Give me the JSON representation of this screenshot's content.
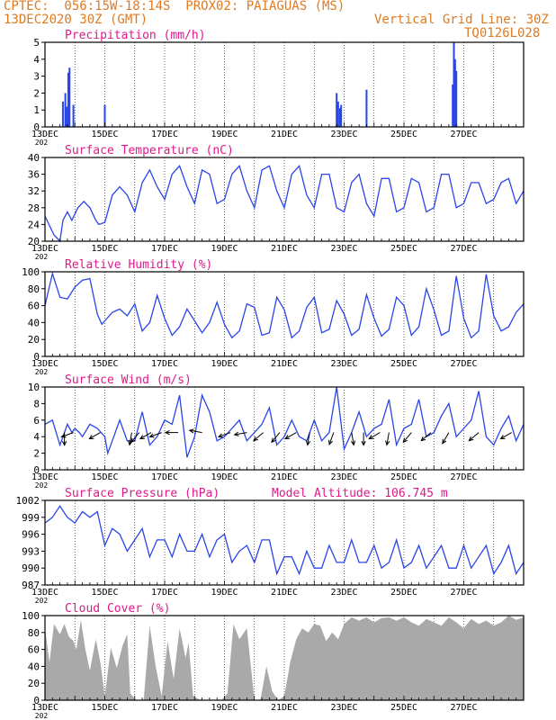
{
  "header": {
    "line1": "CPTEC:  056:15W-18:14S  PROX02: PAIAGUAS (MS)",
    "line2": "13DEC2020 30Z (GMT)",
    "grid_note": "Vertical Grid Line: 30Z",
    "code": "TQ0126L028"
  },
  "colors": {
    "line": "#2a45e8",
    "title": "#e0198a",
    "header": "#e07a20",
    "cloud": "#a9a9a9",
    "grid": "#000000"
  },
  "x_ticks": [
    "13DEC",
    "15DEC",
    "17DEC",
    "19DEC",
    "21DEC",
    "23DEC",
    "25DEC",
    "27DEC"
  ],
  "x_sub": "202",
  "chart_data": [
    {
      "type": "bar",
      "title": "Precipitation (mm/h)",
      "ylim": [
        0,
        5
      ],
      "yticks": [
        0,
        1,
        2,
        3,
        4,
        5
      ],
      "x_range_days": [
        0,
        16
      ],
      "bars": [
        [
          0.6,
          1.5
        ],
        [
          0.68,
          2.0
        ],
        [
          0.72,
          1.2
        ],
        [
          0.78,
          3.2
        ],
        [
          0.82,
          3.5
        ],
        [
          0.95,
          1.3
        ],
        [
          2.0,
          1.3
        ],
        [
          9.75,
          2.0
        ],
        [
          9.8,
          1.5
        ],
        [
          9.86,
          1.1
        ],
        [
          9.9,
          1.3
        ],
        [
          10.75,
          2.2
        ],
        [
          13.63,
          2.5
        ],
        [
          13.67,
          5.0
        ],
        [
          13.71,
          4.0
        ],
        [
          13.75,
          3.3
        ]
      ]
    },
    {
      "type": "line",
      "title": "Surface Temperature (nC)",
      "ylim": [
        20,
        40
      ],
      "yticks": [
        20,
        24,
        28,
        32,
        36,
        40
      ],
      "x_range_days": [
        0,
        16
      ],
      "x": [
        0,
        0.3,
        0.5,
        0.6,
        0.75,
        0.9,
        1.1,
        1.3,
        1.5,
        1.7,
        1.8,
        2.0,
        2.1,
        2.25,
        2.5,
        2.75,
        3.0,
        3.25,
        3.5,
        3.75,
        4.0,
        4.25,
        4.5,
        4.75,
        5.0,
        5.25,
        5.5,
        5.75,
        6.0,
        6.25,
        6.5,
        6.75,
        7.0,
        7.25,
        7.5,
        7.75,
        8.0,
        8.25,
        8.5,
        8.75,
        9.0,
        9.25,
        9.5,
        9.75,
        10.0,
        10.25,
        10.5,
        10.75,
        11.0,
        11.25,
        11.5,
        11.75,
        12.0,
        12.25,
        12.5,
        12.75,
        13.0,
        13.25,
        13.5,
        13.75,
        14.0,
        14.25,
        14.5,
        14.75,
        15.0,
        15.25,
        15.5,
        15.75,
        16.0
      ],
      "y": [
        26,
        21.5,
        20,
        25,
        27,
        25,
        28,
        29.5,
        28,
        25,
        24,
        24.5,
        27,
        31,
        33,
        31,
        27,
        34,
        37,
        33,
        30,
        36,
        38,
        33,
        29,
        37,
        36,
        29,
        30,
        36,
        38,
        32,
        28,
        37,
        38,
        32,
        28,
        36,
        38,
        31,
        28,
        36,
        36,
        28,
        27,
        34,
        36,
        29,
        26,
        35,
        35,
        27,
        28,
        35,
        34,
        27,
        28,
        36,
        36,
        28,
        29,
        34,
        34,
        29,
        30,
        34,
        35,
        29,
        32
      ]
    },
    {
      "type": "line",
      "title": "Relative Humidity (%)",
      "ylim": [
        0,
        100
      ],
      "yticks": [
        0,
        20,
        40,
        60,
        80,
        100
      ],
      "x_range_days": [
        0,
        16
      ],
      "x": [
        0,
        0.25,
        0.5,
        0.75,
        1.0,
        1.25,
        1.5,
        1.75,
        1.9,
        2.0,
        2.25,
        2.5,
        2.75,
        3.0,
        3.25,
        3.5,
        3.75,
        4.0,
        4.25,
        4.5,
        4.75,
        5.0,
        5.25,
        5.5,
        5.75,
        6.0,
        6.25,
        6.5,
        6.75,
        7.0,
        7.25,
        7.5,
        7.75,
        8.0,
        8.25,
        8.5,
        8.75,
        9.0,
        9.25,
        9.5,
        9.75,
        10.0,
        10.25,
        10.5,
        10.75,
        11.0,
        11.25,
        11.5,
        11.75,
        12.0,
        12.25,
        12.5,
        12.75,
        13.0,
        13.25,
        13.5,
        13.75,
        14.0,
        14.25,
        14.5,
        14.75,
        15.0,
        15.25,
        15.5,
        15.75,
        16.0
      ],
      "y": [
        60,
        98,
        70,
        68,
        82,
        90,
        92,
        50,
        38,
        42,
        52,
        56,
        48,
        62,
        30,
        40,
        72,
        45,
        25,
        35,
        56,
        42,
        28,
        40,
        64,
        38,
        22,
        30,
        62,
        58,
        25,
        28,
        70,
        55,
        22,
        30,
        58,
        70,
        28,
        32,
        66,
        50,
        25,
        32,
        73,
        45,
        24,
        32,
        70,
        60,
        25,
        35,
        80,
        55,
        25,
        30,
        95,
        45,
        22,
        30,
        97,
        48,
        30,
        35,
        52,
        62
      ]
    },
    {
      "type": "line",
      "title": "Surface Wind (m/s)",
      "ylim": [
        0,
        10
      ],
      "yticks": [
        0,
        2,
        4,
        6,
        8,
        10
      ],
      "x_range_days": [
        0,
        16
      ],
      "x": [
        0,
        0.25,
        0.5,
        0.6,
        0.75,
        0.9,
        1.0,
        1.15,
        1.25,
        1.5,
        1.75,
        2.0,
        2.1,
        2.25,
        2.5,
        2.75,
        3.0,
        3.25,
        3.5,
        3.75,
        4.0,
        4.25,
        4.5,
        4.75,
        5.0,
        5.25,
        5.5,
        5.75,
        6.0,
        6.25,
        6.5,
        6.75,
        7.0,
        7.25,
        7.5,
        7.75,
        8.0,
        8.25,
        8.5,
        8.75,
        9.0,
        9.25,
        9.5,
        9.75,
        10.0,
        10.25,
        10.5,
        10.75,
        11.0,
        11.25,
        11.5,
        11.75,
        12.0,
        12.25,
        12.5,
        12.75,
        13.0,
        13.25,
        13.5,
        13.75,
        14.0,
        14.25,
        14.5,
        14.75,
        15.0,
        15.25,
        15.5,
        15.75,
        16.0
      ],
      "y": [
        5.5,
        6.0,
        3.0,
        4.0,
        5.5,
        4.5,
        5.0,
        4.5,
        4.0,
        5.5,
        5.0,
        4.0,
        2.0,
        3.5,
        6.0,
        3.5,
        3.5,
        7.0,
        3.0,
        4.0,
        6.0,
        5.5,
        9.0,
        1.5,
        4.0,
        9.0,
        7.0,
        3.5,
        4.0,
        5.0,
        6.0,
        3.5,
        4.5,
        5.5,
        7.5,
        3.0,
        4.0,
        6.0,
        4.0,
        3.5,
        6.0,
        3.5,
        4.5,
        10.0,
        2.5,
        4.5,
        7.0,
        4.0,
        5.0,
        5.5,
        8.5,
        3.0,
        5.0,
        5.5,
        8.5,
        4.0,
        4.5,
        6.5,
        8.0,
        4.0,
        5.0,
        6.0,
        9.5,
        4.0,
        3.0,
        5.0,
        6.5,
        3.5,
        5.5
      ],
      "arrows": [
        [
          0.65,
          -90
        ],
        [
          0.95,
          -160
        ],
        [
          1.85,
          -150
        ],
        [
          2.9,
          -100
        ],
        [
          3.15,
          -130
        ],
        [
          3.55,
          -150
        ],
        [
          3.9,
          -160
        ],
        [
          4.45,
          -180
        ],
        [
          5.25,
          170
        ],
        [
          6.2,
          -160
        ],
        [
          6.75,
          -170
        ],
        [
          7.3,
          -140
        ],
        [
          7.85,
          -130
        ],
        [
          8.4,
          -150
        ],
        [
          8.85,
          -100
        ],
        [
          9.65,
          -110
        ],
        [
          10.25,
          -80
        ],
        [
          10.65,
          -90
        ],
        [
          11.2,
          -150
        ],
        [
          11.5,
          -100
        ],
        [
          12.25,
          -130
        ],
        [
          12.9,
          -140
        ],
        [
          13.5,
          -120
        ],
        [
          14.5,
          -140
        ],
        [
          15.6,
          -150
        ]
      ]
    },
    {
      "type": "line",
      "title": "Surface Pressure (hPa)",
      "subtitle": "Model Altitude: 106.745 m",
      "ylim": [
        987,
        1002
      ],
      "yticks": [
        987,
        990,
        993,
        996,
        999,
        1002
      ],
      "x_range_days": [
        0,
        16
      ],
      "x": [
        0,
        0.25,
        0.5,
        0.75,
        1.0,
        1.25,
        1.5,
        1.75,
        2.0,
        2.25,
        2.5,
        2.75,
        3.0,
        3.25,
        3.5,
        3.75,
        4.0,
        4.25,
        4.5,
        4.75,
        5.0,
        5.25,
        5.5,
        5.75,
        6.0,
        6.25,
        6.5,
        6.75,
        7.0,
        7.25,
        7.5,
        7.75,
        8.0,
        8.25,
        8.5,
        8.75,
        9.0,
        9.25,
        9.5,
        9.75,
        10.0,
        10.25,
        10.5,
        10.75,
        11.0,
        11.25,
        11.5,
        11.75,
        12.0,
        12.25,
        12.5,
        12.75,
        13.0,
        13.25,
        13.5,
        13.75,
        14.0,
        14.25,
        14.5,
        14.75,
        15.0,
        15.25,
        15.5,
        15.75,
        16.0
      ],
      "y": [
        998,
        999,
        1001,
        999,
        998,
        1000,
        999,
        1000,
        994,
        997,
        996,
        993,
        995,
        997,
        992,
        995,
        995,
        992,
        996,
        993,
        993,
        996,
        992,
        995,
        996,
        991,
        993,
        994,
        991,
        995,
        995,
        989,
        992,
        992,
        989,
        993,
        990,
        990,
        994,
        991,
        991,
        995,
        991,
        991,
        994,
        990,
        991,
        995,
        990,
        991,
        994,
        990,
        992,
        994,
        990,
        990,
        994,
        990,
        992,
        994,
        989,
        991,
        994,
        989,
        991
      ]
    },
    {
      "type": "area",
      "title": "Cloud Cover (%)",
      "ylim": [
        0,
        100
      ],
      "yticks": [
        0,
        20,
        40,
        60,
        80,
        100
      ],
      "x_range_days": [
        0,
        16
      ],
      "x": [
        0,
        0.15,
        0.3,
        0.5,
        0.65,
        0.8,
        0.95,
        1.05,
        1.2,
        1.35,
        1.5,
        1.7,
        1.85,
        2.0,
        2.2,
        2.4,
        2.6,
        2.75,
        2.85,
        3.05,
        3.3,
        3.5,
        3.7,
        3.9,
        4.1,
        4.3,
        4.5,
        4.7,
        4.8,
        4.95,
        5.2,
        5.4,
        5.6,
        5.9,
        6.1,
        6.3,
        6.5,
        6.75,
        7.0,
        7.2,
        7.4,
        7.6,
        7.8,
        8.0,
        8.2,
        8.4,
        8.6,
        8.8,
        9.0,
        9.2,
        9.4,
        9.6,
        9.8,
        10.0,
        10.25,
        10.5,
        10.75,
        11.0,
        11.25,
        11.5,
        11.75,
        12.0,
        12.25,
        12.5,
        12.75,
        13.0,
        13.25,
        13.5,
        13.75,
        14.0,
        14.25,
        14.5,
        14.75,
        15.0,
        15.25,
        15.5,
        15.75,
        16.0
      ],
      "y": [
        85,
        45,
        90,
        78,
        90,
        75,
        70,
        60,
        95,
        60,
        35,
        72,
        45,
        5,
        62,
        38,
        65,
        78,
        8,
        0,
        0,
        88,
        40,
        5,
        70,
        25,
        85,
        50,
        68,
        5,
        0,
        0,
        0,
        0,
        8,
        90,
        72,
        85,
        0,
        0,
        40,
        10,
        0,
        5,
        45,
        72,
        85,
        80,
        90,
        88,
        70,
        80,
        72,
        90,
        98,
        94,
        98,
        92,
        97,
        98,
        94,
        98,
        92,
        88,
        96,
        92,
        88,
        98,
        92,
        85,
        96,
        90,
        94,
        88,
        92,
        100,
        95,
        98
      ]
    }
  ]
}
